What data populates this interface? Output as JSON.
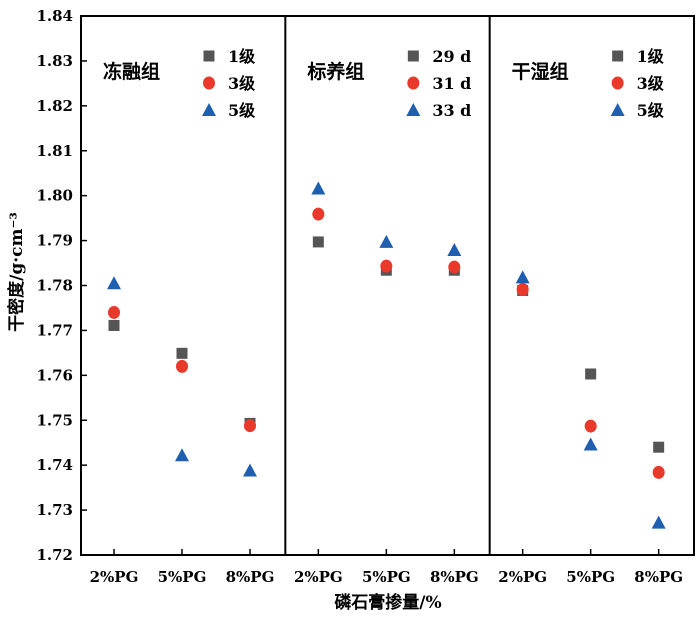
{
  "chart_data": {
    "type": "scatter",
    "ylabel": "干密度/g·cm⁻³",
    "xlabel": "磷石膏掺量/%",
    "ylim": [
      1.72,
      1.84
    ],
    "yticks": [
      "1.72",
      "1.73",
      "1.74",
      "1.75",
      "1.76",
      "1.77",
      "1.78",
      "1.79",
      "1.80",
      "1.81",
      "1.82",
      "1.83",
      "1.84"
    ],
    "categories": [
      "2%PG",
      "5%PG",
      "8%PG"
    ],
    "colors": {
      "square": "#555555",
      "circle": "#e8392a",
      "triangle": "#1f5fb0"
    },
    "panels": [
      {
        "title": "冻融组",
        "series": [
          {
            "name": "1级",
            "marker": "square",
            "values": [
              1.7711,
              1.7649,
              1.7493
            ]
          },
          {
            "name": "3级",
            "marker": "circle",
            "values": [
              1.774,
              1.762,
              1.7488
            ]
          },
          {
            "name": "5级",
            "marker": "triangle",
            "values": [
              1.7805,
              1.7422,
              1.7388
            ]
          }
        ]
      },
      {
        "title": "标养组",
        "series": [
          {
            "name": "29 d",
            "marker": "square",
            "values": [
              1.7897,
              1.7834,
              1.7834
            ]
          },
          {
            "name": "31 d",
            "marker": "circle",
            "values": [
              1.7959,
              1.7843,
              1.7841
            ]
          },
          {
            "name": "33 d",
            "marker": "triangle",
            "values": [
              1.8016,
              1.7897,
              1.7879
            ]
          }
        ]
      },
      {
        "title": "干湿组",
        "series": [
          {
            "name": "1级",
            "marker": "square",
            "values": [
              1.7789,
              1.7603,
              1.744
            ]
          },
          {
            "name": "3级",
            "marker": "circle",
            "values": [
              1.7791,
              1.7487,
              1.7384
            ]
          },
          {
            "name": "5级",
            "marker": "triangle",
            "values": [
              1.7818,
              1.7446,
              1.7272
            ]
          }
        ]
      }
    ]
  }
}
